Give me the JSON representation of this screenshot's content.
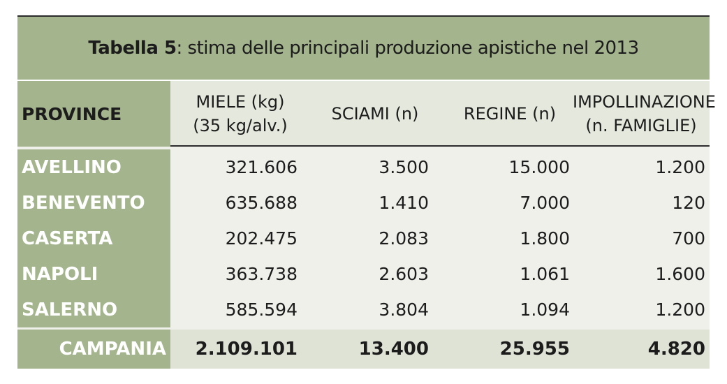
{
  "table": {
    "title_bold": "Tabella 5",
    "title_rest": ": stima delle principali produzione apistiche nel 2013",
    "headers": {
      "province": "PROVINCE",
      "miele_line1": "MIELE (kg)",
      "miele_line2": "(35 kg/alv.)",
      "sciami": "SCIAMI (n)",
      "regine": "REGINE (n)",
      "impoll_line1": "IMPOLLINAZIONE",
      "impoll_line2": "(n. FAMIGLIE)"
    },
    "rows": [
      {
        "province": "AVELLINO",
        "miele": "321.606",
        "sciami": "3.500",
        "regine": "15.000",
        "impoll": "1.200"
      },
      {
        "province": "BENEVENTO",
        "miele": "635.688",
        "sciami": "1.410",
        "regine": "7.000",
        "impoll": "120"
      },
      {
        "province": "CASERTA",
        "miele": "202.475",
        "sciami": "2.083",
        "regine": "1.800",
        "impoll": "700"
      },
      {
        "province": "NAPOLI",
        "miele": "363.738",
        "sciami": "2.603",
        "regine": "1.061",
        "impoll": "1.600"
      },
      {
        "province": "SALERNO",
        "miele": "585.594",
        "sciami": "3.804",
        "regine": "1.094",
        "impoll": "1.200"
      }
    ],
    "total": {
      "label": "CAMPANIA",
      "miele": "2.109.101",
      "sciami": "13.400",
      "regine": "25.955",
      "impoll": "4.820"
    }
  },
  "colors": {
    "header_green": "#a4b58e",
    "body_bg": "#eff0ea",
    "total_bg": "#dfe3d6"
  }
}
